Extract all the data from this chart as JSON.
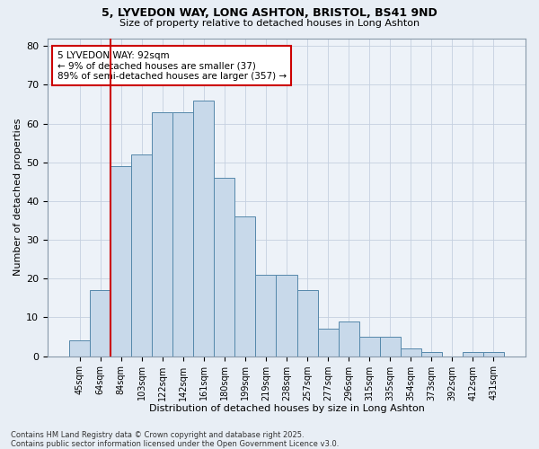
{
  "title1": "5, LYVEDON WAY, LONG ASHTON, BRISTOL, BS41 9ND",
  "title2": "Size of property relative to detached houses in Long Ashton",
  "xlabel": "Distribution of detached houses by size in Long Ashton",
  "ylabel": "Number of detached properties",
  "categories": [
    "45sqm",
    "64sqm",
    "84sqm",
    "103sqm",
    "122sqm",
    "142sqm",
    "161sqm",
    "180sqm",
    "199sqm",
    "219sqm",
    "238sqm",
    "257sqm",
    "277sqm",
    "296sqm",
    "315sqm",
    "335sqm",
    "354sqm",
    "373sqm",
    "392sqm",
    "412sqm",
    "431sqm"
  ],
  "values": [
    4,
    17,
    49,
    52,
    63,
    63,
    66,
    46,
    36,
    21,
    21,
    17,
    7,
    9,
    5,
    5,
    2,
    1,
    0,
    1,
    1
  ],
  "bar_color": "#c8d9ea",
  "bar_edge_color": "#5588aa",
  "vline_color": "#cc0000",
  "vline_x": 1.5,
  "annotation_text": "5 LYVEDON WAY: 92sqm\n← 9% of detached houses are smaller (37)\n89% of semi-detached houses are larger (357) →",
  "annotation_box_facecolor": "#ffffff",
  "annotation_box_edgecolor": "#cc0000",
  "ylim": [
    0,
    82
  ],
  "yticks": [
    0,
    10,
    20,
    30,
    40,
    50,
    60,
    70,
    80
  ],
  "footer_text": "Contains HM Land Registry data © Crown copyright and database right 2025.\nContains public sector information licensed under the Open Government Licence v3.0.",
  "grid_color": "#c5d0e0",
  "bg_color": "#e8eef5",
  "plot_bg_color": "#edf2f8",
  "title1_fontsize": 9,
  "title2_fontsize": 8,
  "ylabel_fontsize": 8,
  "xlabel_fontsize": 8
}
